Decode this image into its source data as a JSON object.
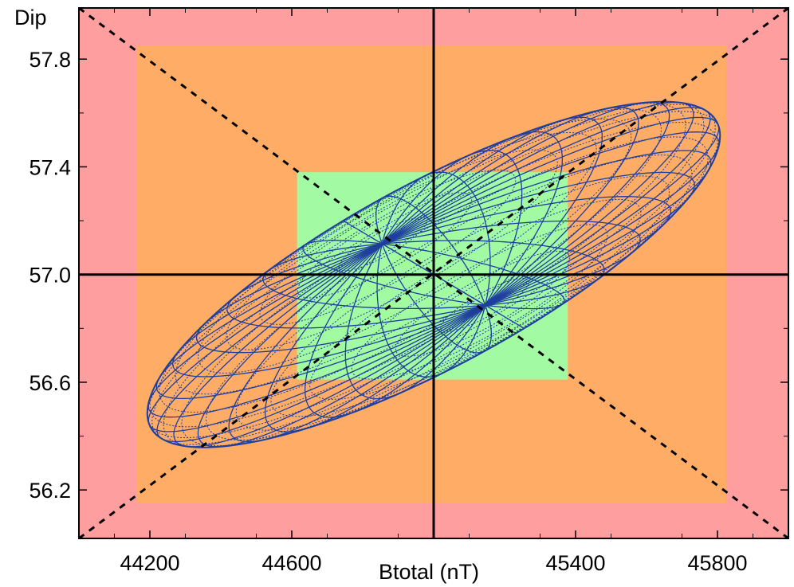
{
  "chart_data": {
    "type": "area",
    "xlabel": "Btotal (nT)",
    "ylabel": "Dip",
    "xlim": [
      44000,
      46000
    ],
    "ylim": [
      56.02,
      57.99
    ],
    "xticks": [
      44200,
      44600,
      45000,
      45400,
      45800
    ],
    "xtick_labels": [
      "44200",
      "44600",
      "",
      "45400",
      "45800"
    ],
    "yticks": [
      56.2,
      56.6,
      57.0,
      57.4,
      57.8
    ],
    "ytick_labels": [
      "56.2",
      "56.6",
      "57.0",
      "57.4",
      "57.8"
    ],
    "center": {
      "btotal": 45000,
      "dip": 57.0
    },
    "regions": [
      {
        "name": "outer",
        "color": "#ff9e9e",
        "btotal": [
          44000,
          46000
        ],
        "dip": [
          56.02,
          57.99
        ]
      },
      {
        "name": "middle",
        "color": "#ffad66",
        "btotal": [
          44163,
          45825
        ],
        "dip": [
          56.15,
          57.85
        ]
      },
      {
        "name": "inner",
        "color": "#a2fba2",
        "btotal": [
          44615,
          45378
        ],
        "dip": [
          56.61,
          57.38
        ]
      }
    ],
    "ellipse": {
      "color": "#1f3f9f",
      "center": {
        "btotal": 45000,
        "dip": 57.0
      },
      "semi_major_btotal": 766,
      "semi_major_dip": 0.61,
      "semi_minor_btotal": -255,
      "semi_minor_dip": 0.2
    },
    "diagonals": [
      {
        "from": {
          "btotal": 44000,
          "dip": 56.02
        },
        "to": {
          "btotal": 46000,
          "dip": 57.99
        }
      },
      {
        "from": {
          "btotal": 44000,
          "dip": 57.99
        },
        "to": {
          "btotal": 46000,
          "dip": 56.02
        }
      }
    ],
    "crosshair": {
      "btotal": 45000,
      "dip": 57.0
    },
    "grid": false
  }
}
